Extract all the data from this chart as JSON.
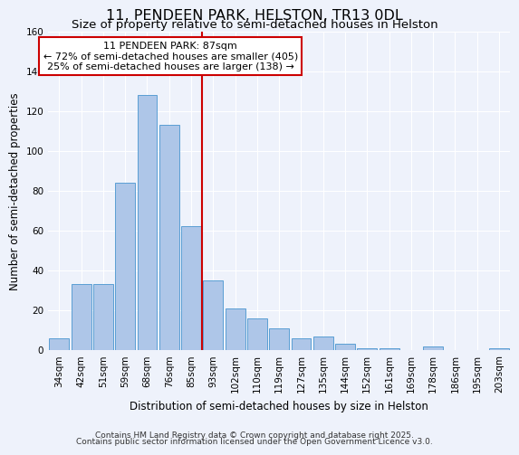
{
  "title": "11, PENDEEN PARK, HELSTON, TR13 0DL",
  "subtitle": "Size of property relative to semi-detached houses in Helston",
  "xlabel": "Distribution of semi-detached houses by size in Helston",
  "ylabel": "Number of semi-detached properties",
  "bar_labels": [
    "34sqm",
    "42sqm",
    "51sqm",
    "59sqm",
    "68sqm",
    "76sqm",
    "85sqm",
    "93sqm",
    "102sqm",
    "110sqm",
    "119sqm",
    "127sqm",
    "135sqm",
    "144sqm",
    "152sqm",
    "161sqm",
    "169sqm",
    "178sqm",
    "186sqm",
    "195sqm",
    "203sqm"
  ],
  "bar_values": [
    6,
    33,
    33,
    84,
    128,
    113,
    62,
    35,
    21,
    16,
    11,
    6,
    7,
    3,
    1,
    1,
    0,
    2,
    0,
    0,
    1
  ],
  "bar_color": "#aec6e8",
  "bar_edge_color": "#5a9fd4",
  "vline_color": "#cc0000",
  "annotation_title": "11 PENDEEN PARK: 87sqm",
  "annotation_line1": "← 72% of semi-detached houses are smaller (405)",
  "annotation_line2": "25% of semi-detached houses are larger (138) →",
  "annotation_box_color": "#ffffff",
  "annotation_box_edge": "#cc0000",
  "ylim": [
    0,
    160
  ],
  "yticks": [
    0,
    20,
    40,
    60,
    80,
    100,
    120,
    140,
    160
  ],
  "footer1": "Contains HM Land Registry data © Crown copyright and database right 2025.",
  "footer2": "Contains public sector information licensed under the Open Government Licence v3.0.",
  "background_color": "#eef2fb",
  "grid_color": "#ffffff",
  "title_fontsize": 11.5,
  "subtitle_fontsize": 9.5,
  "axis_label_fontsize": 8.5,
  "tick_fontsize": 7.5,
  "annotation_fontsize": 8,
  "footer_fontsize": 6.5
}
